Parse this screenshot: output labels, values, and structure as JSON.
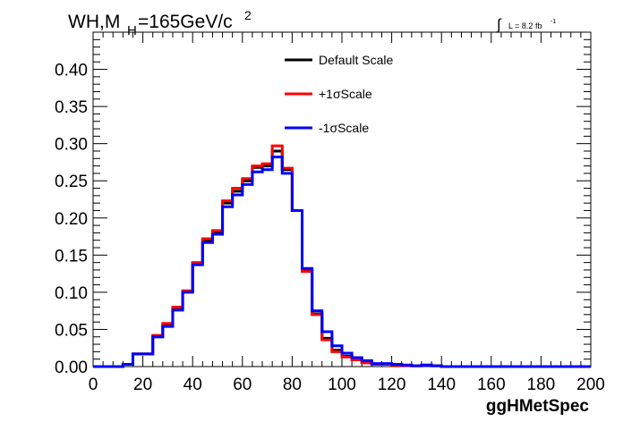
{
  "chart_data": {
    "type": "line",
    "title": "WH,M",
    "title_sub": "H",
    "title_rest": "=165GeV/c",
    "title_sup": "2",
    "lumi_label": "L = 8.2 fb",
    "lumi_sup": "-1",
    "lumi_integral": "∫",
    "xlabel": "ggHMetSpec",
    "ylabel": "",
    "xlim": [
      0,
      200
    ],
    "ylim": [
      0,
      0.45
    ],
    "x_ticks": [
      "0",
      "20",
      "40",
      "60",
      "80",
      "100",
      "120",
      "140",
      "160",
      "180",
      "200"
    ],
    "y_ticks": [
      "0.00",
      "0.05",
      "0.10",
      "0.15",
      "0.20",
      "0.25",
      "0.30",
      "0.35",
      "0.40"
    ],
    "bin_edges": [
      0,
      4,
      8,
      12,
      16,
      20,
      24,
      28,
      32,
      36,
      40,
      44,
      48,
      52,
      56,
      60,
      64,
      68,
      72,
      76,
      80,
      84,
      88,
      92,
      96,
      100,
      104,
      108,
      112,
      116,
      120,
      124,
      128,
      132,
      136,
      140,
      144,
      148,
      152,
      156,
      160,
      164,
      168,
      172,
      176,
      180,
      184,
      188,
      192,
      196,
      200
    ],
    "series": [
      {
        "name": "Default Scale",
        "color": "#000000",
        "values": [
          0,
          0,
          0,
          0.003,
          0.017,
          0.017,
          0.04,
          0.056,
          0.078,
          0.101,
          0.139,
          0.17,
          0.18,
          0.22,
          0.236,
          0.25,
          0.268,
          0.27,
          0.29,
          0.265,
          0.21,
          0.13,
          0.071,
          0.038,
          0.022,
          0.014,
          0.01,
          0.006,
          0.003,
          0.003,
          0.003,
          0.002,
          0.001,
          0.002,
          0.001,
          0,
          0,
          0,
          0,
          0,
          0,
          0,
          0,
          0,
          0,
          0,
          0,
          0,
          0,
          0
        ]
      },
      {
        "name": "+1σScale",
        "color": "#ff0000",
        "values": [
          0,
          0,
          0,
          0.003,
          0.017,
          0.017,
          0.042,
          0.058,
          0.08,
          0.102,
          0.14,
          0.172,
          0.183,
          0.223,
          0.24,
          0.253,
          0.27,
          0.273,
          0.297,
          0.267,
          0.21,
          0.128,
          0.07,
          0.036,
          0.02,
          0.013,
          0.009,
          0.005,
          0.003,
          0.003,
          0.002,
          0.001,
          0.001,
          0.002,
          0.001,
          0,
          0,
          0,
          0,
          0,
          0,
          0,
          0,
          0,
          0,
          0,
          0,
          0,
          0,
          0
        ]
      },
      {
        "name": "-1σScale",
        "color": "#0000ff",
        "values": [
          0,
          0,
          0,
          0.003,
          0.017,
          0.017,
          0.04,
          0.054,
          0.076,
          0.1,
          0.137,
          0.167,
          0.178,
          0.215,
          0.231,
          0.245,
          0.262,
          0.265,
          0.282,
          0.26,
          0.21,
          0.132,
          0.075,
          0.047,
          0.028,
          0.018,
          0.012,
          0.008,
          0.004,
          0.004,
          0.003,
          0.002,
          0.001,
          0.002,
          0.001,
          0,
          0,
          0,
          0,
          0,
          0,
          0,
          0,
          0,
          0,
          0,
          0,
          0,
          0,
          0
        ]
      }
    ],
    "legend_placement": "top-center",
    "grid": false
  }
}
